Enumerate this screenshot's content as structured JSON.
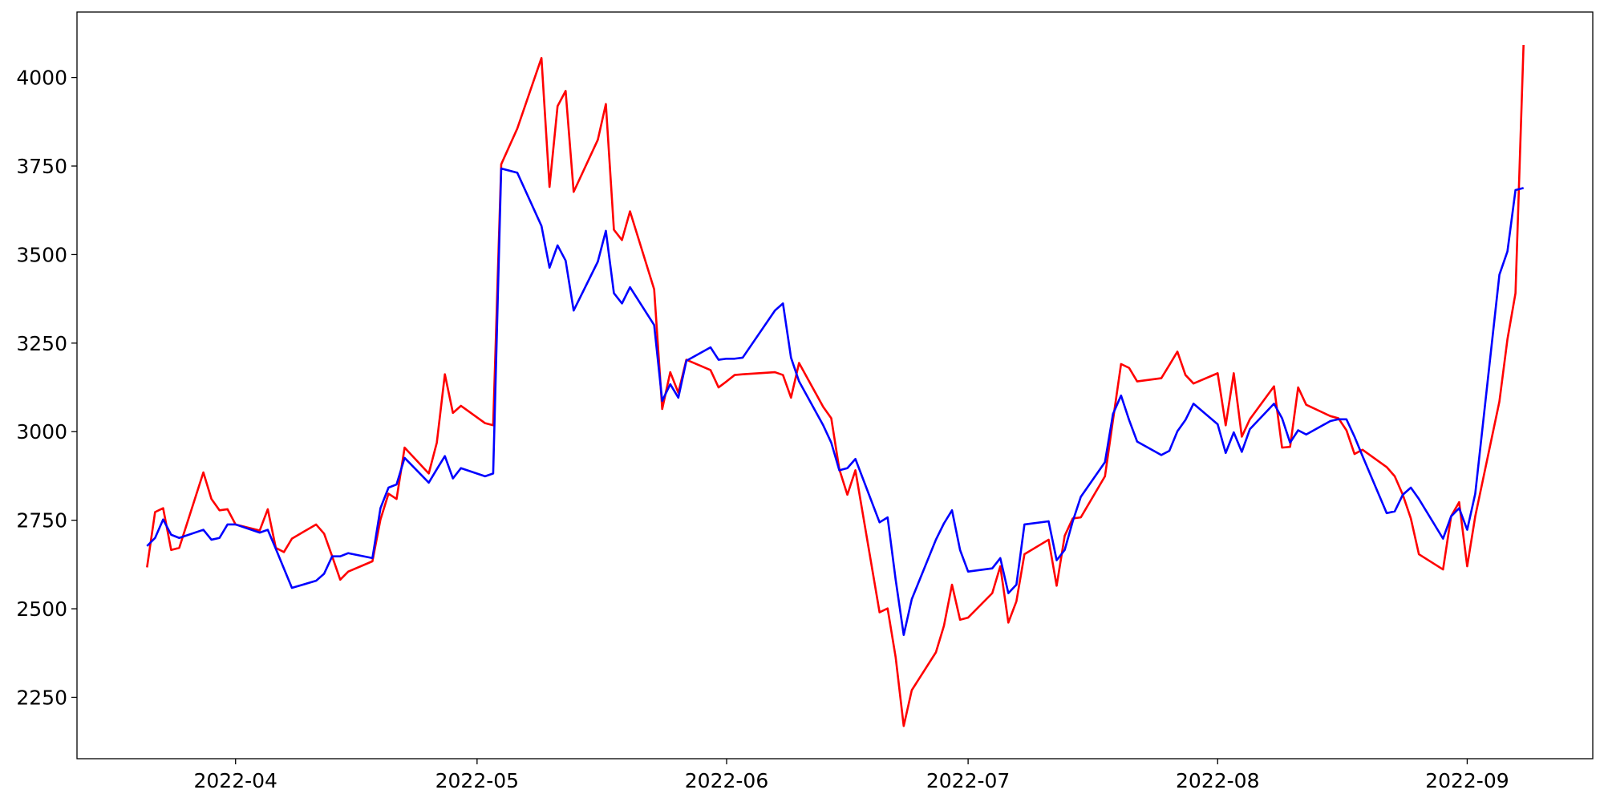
{
  "chart_data": {
    "type": "line",
    "x": [
      19072,
      19073,
      19074,
      19075,
      19076,
      19079,
      19080,
      19081,
      19082,
      19083,
      19086,
      19087,
      19088,
      19089,
      19090,
      19093,
      19094,
      19095,
      19096,
      19097,
      19100,
      19101,
      19102,
      19103,
      19104,
      19107,
      19108,
      19109,
      19110,
      19111,
      19114,
      19115,
      19116,
      19118,
      19121,
      19122,
      19123,
      19124,
      19125,
      19128,
      19129,
      19130,
      19131,
      19132,
      19135,
      19136,
      19137,
      19138,
      19139,
      19142,
      19143,
      19144,
      19145,
      19146,
      19150,
      19151,
      19152,
      19153,
      19156,
      19157,
      19158,
      19159,
      19160,
      19163,
      19164,
      19165,
      19166,
      19167,
      19170,
      19171,
      19172,
      19173,
      19174,
      19177,
      19178,
      19179,
      19180,
      19181,
      19184,
      19185,
      19186,
      19187,
      19188,
      19191,
      19192,
      19193,
      19194,
      19195,
      19198,
      19199,
      19200,
      19201,
      19202,
      19205,
      19206,
      19207,
      19208,
      19209,
      19212,
      19213,
      19214,
      19215,
      19216,
      19219,
      19220,
      19221,
      19222,
      19223,
      19226,
      19227,
      19228,
      19229,
      19230,
      19233,
      19234,
      19235,
      19236,
      19237,
      19240,
      19241,
      19242,
      19243
    ],
    "series": [
      {
        "color": "#ff0000",
        "values": [
          2617,
          2773,
          2784,
          2666,
          2672,
          2885,
          2810,
          2778,
          2781,
          2738,
          2721,
          2781,
          2672,
          2660,
          2698,
          2738,
          2712,
          2648,
          2582,
          2605,
          2634,
          2752,
          2825,
          2810,
          2955,
          2882,
          2969,
          3162,
          3053,
          3073,
          3024,
          3018,
          3755,
          3856,
          4055,
          3691,
          3919,
          3962,
          3677,
          3824,
          3925,
          3570,
          3541,
          3622,
          3402,
          3064,
          3168,
          3110,
          3203,
          3174,
          3125,
          3142,
          3160,
          3162,
          3168,
          3160,
          3096,
          3194,
          3070,
          3038,
          2894,
          2822,
          2891,
          2490,
          2501,
          2363,
          2169,
          2270,
          2377,
          2452,
          2568,
          2469,
          2475,
          2544,
          2620,
          2461,
          2521,
          2654,
          2695,
          2565,
          2706,
          2755,
          2758,
          2874,
          3033,
          3191,
          3180,
          3142,
          3151,
          3188,
          3226,
          3160,
          3136,
          3165,
          3018,
          3165,
          2986,
          3035,
          3128,
          2955,
          2957,
          3125,
          3076,
          3044,
          3038,
          3004,
          2937,
          2949,
          2900,
          2874,
          2822,
          2755,
          2654,
          2611,
          2761,
          2801,
          2620,
          2761,
          3085,
          3261,
          3391,
          4092
        ]
      },
      {
        "color": "#0000ff",
        "values": [
          2677,
          2700,
          2752,
          2709,
          2700,
          2723,
          2695,
          2700,
          2738,
          2738,
          2715,
          2723,
          2669,
          2614,
          2559,
          2579,
          2599,
          2648,
          2648,
          2657,
          2643,
          2784,
          2842,
          2851,
          2926,
          2856,
          2894,
          2931,
          2868,
          2897,
          2874,
          2882,
          3743,
          3731,
          3581,
          3463,
          3526,
          3483,
          3342,
          3480,
          3567,
          3391,
          3362,
          3408,
          3301,
          3087,
          3134,
          3096,
          3200,
          3238,
          3203,
          3206,
          3206,
          3209,
          3342,
          3362,
          3209,
          3142,
          3018,
          2969,
          2891,
          2897,
          2923,
          2744,
          2758,
          2582,
          2426,
          2527,
          2695,
          2741,
          2778,
          2666,
          2605,
          2614,
          2643,
          2544,
          2568,
          2738,
          2747,
          2637,
          2666,
          2747,
          2816,
          2914,
          3050,
          3102,
          3033,
          2972,
          2934,
          2946,
          3001,
          3033,
          3079,
          3021,
          2940,
          2998,
          2943,
          3007,
          3079,
          3038,
          2969,
          3004,
          2992,
          3030,
          3035,
          3035,
          2986,
          2931,
          2770,
          2775,
          2822,
          2842,
          2810,
          2698,
          2761,
          2784,
          2723,
          2825,
          3443,
          3509,
          3682,
          3688
        ]
      }
    ],
    "xlim": [
      19063.3,
      19251.6
    ],
    "xticks": [
      {
        "value": 19083,
        "label": "2022-04"
      },
      {
        "value": 19113,
        "label": "2022-05"
      },
      {
        "value": 19144,
        "label": "2022-06"
      },
      {
        "value": 19174,
        "label": "2022-07"
      },
      {
        "value": 19205,
        "label": "2022-08"
      },
      {
        "value": 19236,
        "label": "2022-09"
      }
    ],
    "ylim": [
      2076.7,
      4184.8
    ],
    "yticks": [
      2250,
      2500,
      2750,
      3000,
      3250,
      3500,
      3750,
      4000
    ],
    "grid": false
  }
}
